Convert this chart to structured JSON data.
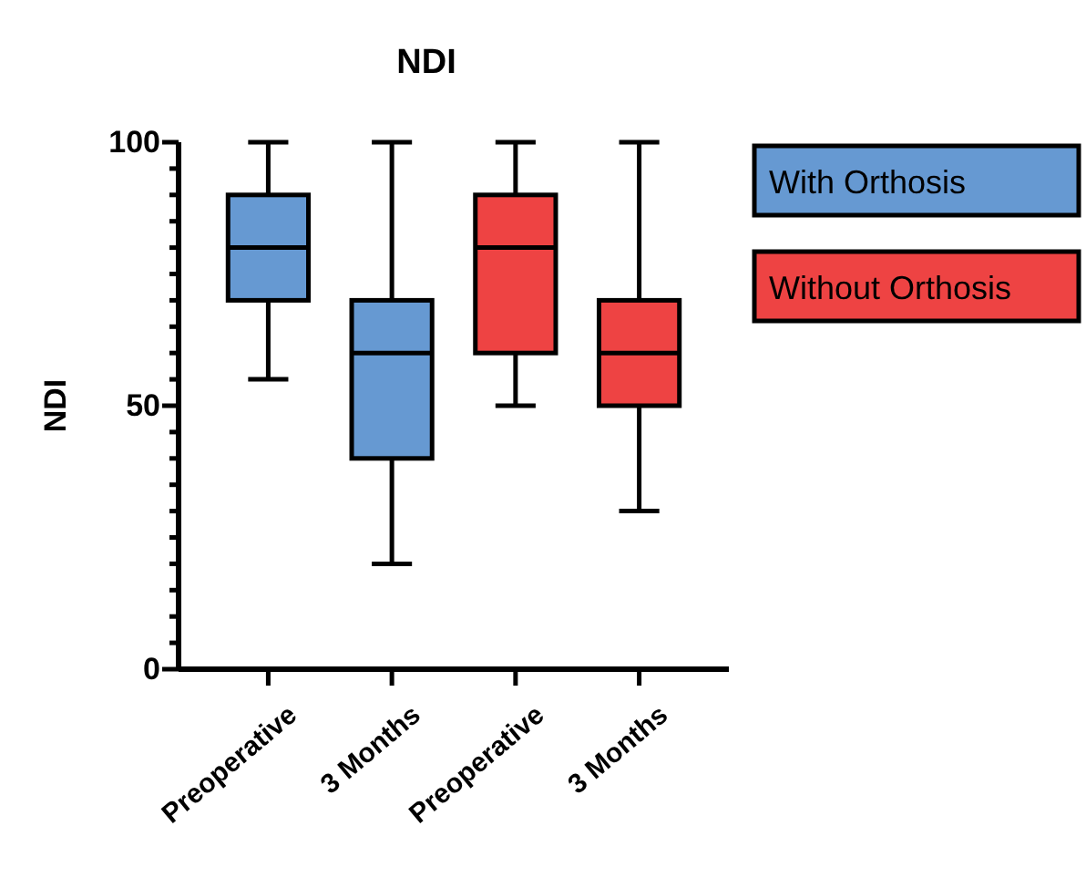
{
  "chart_data": {
    "type": "box",
    "title": "NDI",
    "ylabel": "NDI",
    "categories": [
      "Preoperative",
      "3 Months",
      "Preoperative",
      "3 Months"
    ],
    "ylim": [
      0,
      100
    ],
    "yticks": [
      0,
      {
        "value": 5,
        "label": null
      },
      {
        "value": 10,
        "label": null
      },
      {
        "value": 15,
        "label": null
      },
      {
        "value": 20,
        "label": null
      },
      {
        "value": 25,
        "label": null
      },
      {
        "value": 30,
        "label": null
      },
      {
        "value": 35,
        "label": null
      },
      {
        "value": 40,
        "label": null
      },
      {
        "value": 45,
        "label": null
      },
      50,
      {
        "value": 55,
        "label": null
      },
      {
        "value": 60,
        "label": null
      },
      {
        "value": 65,
        "label": null
      },
      {
        "value": 70,
        "label": null
      },
      {
        "value": 75,
        "label": null
      },
      {
        "value": 80,
        "label": null
      },
      {
        "value": 85,
        "label": null
      },
      {
        "value": 90,
        "label": null
      },
      {
        "value": 95,
        "label": null
      },
      100
    ],
    "grid": false,
    "legend": "top right",
    "series": [
      {
        "name": "With Orthosis",
        "color": "#6699d2",
        "boxes": [
          {
            "low": 55,
            "q1": 70,
            "median": 80,
            "q3": 90,
            "high": 100
          },
          {
            "low": 20,
            "q1": 40,
            "median": 60,
            "q3": 70,
            "high": 100
          },
          null,
          null
        ]
      },
      {
        "name": "Without Orthosis",
        "color": "#ee4343",
        "boxes": [
          null,
          null,
          {
            "low": 50,
            "q1": 60,
            "median": 80,
            "q3": 90,
            "high": 100
          },
          {
            "low": 30,
            "q1": 50,
            "median": 60,
            "q3": 70,
            "high": 100
          }
        ]
      }
    ]
  }
}
